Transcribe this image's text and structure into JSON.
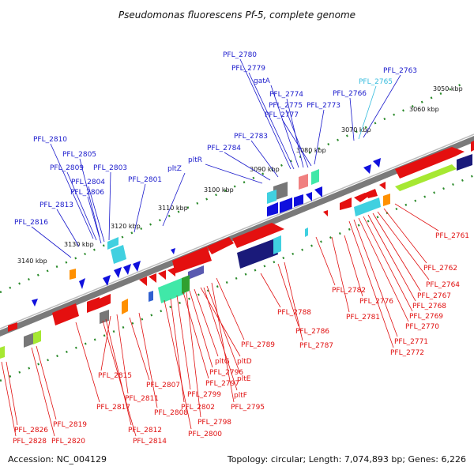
{
  "title": "Pseudomonas fluorescens Pf-5, complete genome",
  "footer": {
    "accession": "Accession: NC_004129",
    "summary": "Topology: circular; Length: 7,074,893 bp; Genes: 6,226"
  },
  "colors": {
    "forward_label": "#1a1acc",
    "reverse_label": "#e01010",
    "highlight_label": "#33bbdd",
    "backbone": "#7a7a7a",
    "tick": "#2a8a2a"
  },
  "kbp_ticks": [
    "3050 kbp",
    "3060 kbp",
    "3070 kbp",
    "3080 kbp",
    "3090 kbp",
    "3100 kbp",
    "3110 kbp",
    "3120 kbp",
    "3130 kbp",
    "3140 kbp"
  ],
  "labels_top": [
    "PFL_2780",
    "PFL_2779",
    "gatA",
    "PFL_2774",
    "PFL_2775",
    "PFL_2777",
    "PFL_2773",
    "PFL_2766",
    "PFL_2765",
    "PFL_2763",
    "PFL_2810",
    "PFL_2805",
    "PFL_2809",
    "PFL_2804",
    "PFL_2806",
    "PFL_2803",
    "PFL_2801",
    "pltZ",
    "pltR",
    "PFL_2784",
    "PFL_2783",
    "PFL_2813",
    "PFL_2816"
  ],
  "labels_bottom": [
    "PFL_2761",
    "PFL_2762",
    "PFL_2764",
    "PFL_2767",
    "PFL_2768",
    "PFL_2769",
    "PFL_2770",
    "PFL_2771",
    "PFL_2772",
    "PFL_2782",
    "PFL_2776",
    "PFL_2781",
    "PFL_2788",
    "PFL_2786",
    "PFL_2787",
    "PFL_2789",
    "pltD",
    "pltG",
    "PFL_2796",
    "pltE",
    "PFL_2797",
    "pltF",
    "PFL_2799",
    "PFL_2795",
    "PFL_2802",
    "PFL_2798",
    "PFL_2800",
    "PFL_2807",
    "PFL_2808",
    "PFL_2815",
    "PFL_2811",
    "PFL_2817",
    "PFL_2812",
    "PFL_2814",
    "PFL_2819",
    "PFL_2820",
    "PFL_2826",
    "PFL_2828"
  ]
}
